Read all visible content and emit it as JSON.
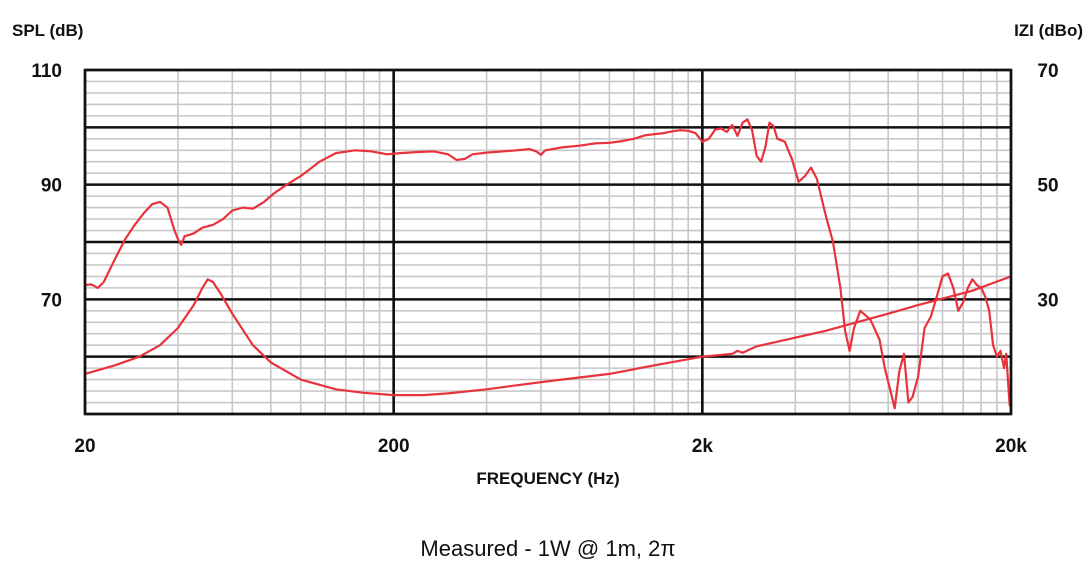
{
  "chart_data": {
    "type": "line",
    "title": "",
    "caption": "Measured - 1W @ 1m, 2π",
    "xlabel": "FREQUENCY (Hz)",
    "ylabel_left": "SPL (dB)",
    "ylabel_right": "IZI (dBo)",
    "xscale": "log",
    "xlim": [
      20,
      20000
    ],
    "ylim_left": [
      50,
      110
    ],
    "ylim_right": [
      10,
      70
    ],
    "x_ticks": [
      {
        "value": 20,
        "label": "20"
      },
      {
        "value": 200,
        "label": "200"
      },
      {
        "value": 2000,
        "label": "2k"
      },
      {
        "value": 20000,
        "label": "20k"
      }
    ],
    "y_ticks_left": [
      {
        "value": 110,
        "label": "110"
      },
      {
        "value": 90,
        "label": "90"
      },
      {
        "value": 70,
        "label": "70"
      }
    ],
    "y_ticks_right": [
      {
        "value": 70,
        "label": "70"
      },
      {
        "value": 50,
        "label": "50"
      },
      {
        "value": 30,
        "label": "30"
      }
    ],
    "grid": true,
    "line_color": "#e8323c",
    "series": [
      {
        "axis": "left",
        "points": [
          [
            20,
            72.5
          ],
          [
            21,
            72.6
          ],
          [
            22,
            72.0
          ],
          [
            23,
            73.0
          ],
          [
            25,
            77.0
          ],
          [
            27,
            80.5
          ],
          [
            29,
            83.0
          ],
          [
            31,
            85.0
          ],
          [
            33,
            86.6
          ],
          [
            35,
            87.0
          ],
          [
            37,
            86.0
          ],
          [
            39,
            82.0
          ],
          [
            40,
            80.5
          ],
          [
            41,
            79.5
          ],
          [
            42,
            81.0
          ],
          [
            45,
            81.5
          ],
          [
            48,
            82.5
          ],
          [
            52,
            83.0
          ],
          [
            56,
            84.0
          ],
          [
            60,
            85.5
          ],
          [
            65,
            86.0
          ],
          [
            70,
            85.8
          ],
          [
            76,
            87.0
          ],
          [
            82,
            88.5
          ],
          [
            90,
            90.0
          ],
          [
            100,
            91.5
          ],
          [
            115,
            94.0
          ],
          [
            130,
            95.5
          ],
          [
            150,
            96.0
          ],
          [
            170,
            95.8
          ],
          [
            190,
            95.3
          ],
          [
            210,
            95.5
          ],
          [
            240,
            95.7
          ],
          [
            270,
            95.8
          ],
          [
            300,
            95.3
          ],
          [
            320,
            94.3
          ],
          [
            340,
            94.5
          ],
          [
            360,
            95.3
          ],
          [
            400,
            95.6
          ],
          [
            450,
            95.8
          ],
          [
            500,
            96.0
          ],
          [
            550,
            96.2
          ],
          [
            580,
            95.8
          ],
          [
            600,
            95.2
          ],
          [
            620,
            96.0
          ],
          [
            700,
            96.5
          ],
          [
            800,
            96.8
          ],
          [
            900,
            97.2
          ],
          [
            1000,
            97.3
          ],
          [
            1100,
            97.6
          ],
          [
            1200,
            98.0
          ],
          [
            1300,
            98.6
          ],
          [
            1400,
            98.8
          ],
          [
            1500,
            99.0
          ],
          [
            1600,
            99.3
          ],
          [
            1700,
            99.5
          ],
          [
            1800,
            99.4
          ],
          [
            1900,
            99.0
          ],
          [
            2000,
            97.5
          ],
          [
            2100,
            98.0
          ],
          [
            2200,
            99.6
          ],
          [
            2300,
            99.8
          ],
          [
            2400,
            99.2
          ],
          [
            2500,
            100.4
          ],
          [
            2600,
            98.5
          ],
          [
            2700,
            100.8
          ],
          [
            2800,
            101.4
          ],
          [
            2900,
            99.5
          ],
          [
            3000,
            95.0
          ],
          [
            3100,
            94.0
          ],
          [
            3200,
            96.5
          ],
          [
            3300,
            100.8
          ],
          [
            3400,
            100.2
          ],
          [
            3500,
            98.0
          ],
          [
            3700,
            97.5
          ],
          [
            3900,
            94.5
          ],
          [
            4100,
            90.5
          ],
          [
            4300,
            91.5
          ],
          [
            4500,
            93.0
          ],
          [
            4700,
            91.0
          ],
          [
            5000,
            85.0
          ],
          [
            5300,
            80.0
          ],
          [
            5600,
            72.0
          ],
          [
            5800,
            64.5
          ],
          [
            6000,
            61.0
          ],
          [
            6200,
            65.0
          ],
          [
            6500,
            68.0
          ],
          [
            7000,
            66.5
          ],
          [
            7500,
            63.0
          ],
          [
            7800,
            58.0
          ],
          [
            8100,
            54.5
          ],
          [
            8400,
            51.0
          ],
          [
            8700,
            57.5
          ],
          [
            9000,
            60.5
          ],
          [
            9300,
            52.0
          ],
          [
            9600,
            53.0
          ],
          [
            10000,
            56.5
          ],
          [
            10500,
            65.0
          ],
          [
            11000,
            67.0
          ],
          [
            11500,
            70.5
          ],
          [
            12000,
            74.0
          ],
          [
            12500,
            74.5
          ],
          [
            13000,
            72.0
          ],
          [
            13500,
            68.0
          ],
          [
            14000,
            69.5
          ],
          [
            14500,
            72.0
          ],
          [
            15000,
            73.5
          ],
          [
            15500,
            72.5
          ],
          [
            16000,
            72.0
          ],
          [
            16500,
            70.5
          ],
          [
            17000,
            68.0
          ],
          [
            17500,
            62.0
          ],
          [
            18000,
            60.0
          ],
          [
            18500,
            61.0
          ],
          [
            19000,
            58.0
          ],
          [
            19300,
            60.5
          ],
          [
            19600,
            55.0
          ],
          [
            19800,
            51.5
          ],
          [
            20000,
            52.5
          ]
        ]
      },
      {
        "axis": "right",
        "points": [
          [
            20,
            17.0
          ],
          [
            25,
            18.5
          ],
          [
            30,
            20.0
          ],
          [
            35,
            22.0
          ],
          [
            40,
            25.0
          ],
          [
            45,
            29.0
          ],
          [
            48,
            32.0
          ],
          [
            50,
            33.5
          ],
          [
            52,
            33.0
          ],
          [
            55,
            31.0
          ],
          [
            60,
            27.5
          ],
          [
            70,
            22.0
          ],
          [
            80,
            19.0
          ],
          [
            100,
            16.0
          ],
          [
            130,
            14.3
          ],
          [
            160,
            13.7
          ],
          [
            200,
            13.3
          ],
          [
            250,
            13.3
          ],
          [
            300,
            13.6
          ],
          [
            400,
            14.3
          ],
          [
            500,
            15.0
          ],
          [
            700,
            16.0
          ],
          [
            1000,
            17.0
          ],
          [
            1400,
            18.5
          ],
          [
            2000,
            20.0
          ],
          [
            2500,
            20.5
          ],
          [
            2600,
            21.0
          ],
          [
            2700,
            20.7
          ],
          [
            3000,
            21.8
          ],
          [
            5000,
            24.5
          ],
          [
            8000,
            27.5
          ],
          [
            10000,
            29.0
          ],
          [
            15000,
            31.5
          ],
          [
            20000,
            34.0
          ]
        ]
      }
    ]
  }
}
